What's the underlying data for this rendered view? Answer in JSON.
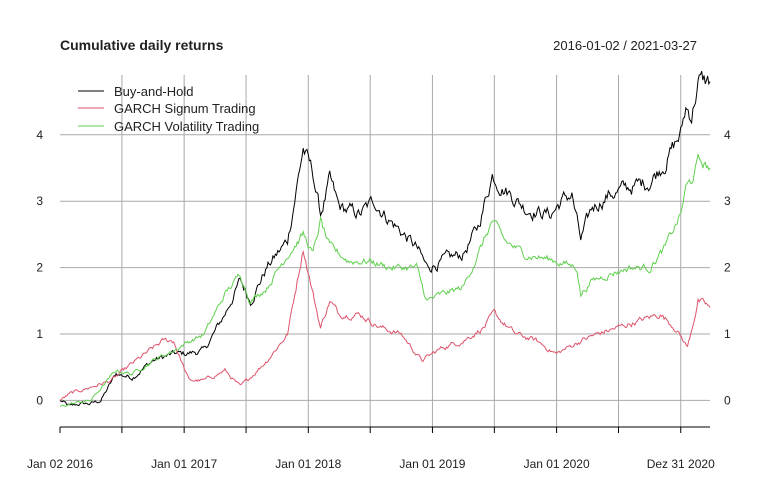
{
  "chart_data": {
    "type": "line",
    "title": "Cumulative daily returns",
    "date_range": "2016-01-02 / 2021-03-27",
    "xlabel": "",
    "ylabel": "",
    "ylim": [
      -0.4,
      4.9
    ],
    "grid": true,
    "legend_position": "top-left",
    "y_ticks_left": [
      "0",
      "1",
      "2",
      "3",
      "4"
    ],
    "y_ticks_right": [
      "0",
      "1",
      "2",
      "3",
      "4"
    ],
    "y_tick_values": [
      0,
      1,
      2,
      3,
      4
    ],
    "x_ticks": [
      {
        "label": "Jan 02 2016",
        "date": "2016-01-02"
      },
      {
        "label": "Jan 01 2017",
        "date": "2017-01-01"
      },
      {
        "label": "Jan 01 2018",
        "date": "2018-01-01"
      },
      {
        "label": "Jan 01 2019",
        "date": "2019-01-01"
      },
      {
        "label": "Jan 01 2020",
        "date": "2020-01-01"
      },
      {
        "label": "Dez 31 2020",
        "date": "2020-12-31"
      }
    ],
    "minor_ticks": [
      "2016-07-02",
      "2017-07-02",
      "2018-07-02",
      "2019-07-02",
      "2020-07-01"
    ],
    "series": [
      {
        "name": "Buy-and-Hold",
        "color": "#000000",
        "points": [
          [
            "2016-01-02",
            0.0
          ],
          [
            "2016-02-01",
            -0.1
          ],
          [
            "2016-03-01",
            -0.05
          ],
          [
            "2016-04-01",
            -0.05
          ],
          [
            "2016-05-01",
            0.0
          ],
          [
            "2016-06-15",
            0.4
          ],
          [
            "2016-08-01",
            0.35
          ],
          [
            "2016-10-01",
            0.6
          ],
          [
            "2016-12-01",
            0.7
          ],
          [
            "2017-01-01",
            0.7
          ],
          [
            "2017-03-01",
            0.75
          ],
          [
            "2017-05-01",
            1.3
          ],
          [
            "2017-06-15",
            1.8
          ],
          [
            "2017-07-15",
            1.5
          ],
          [
            "2017-09-01",
            2.0
          ],
          [
            "2017-11-01",
            2.4
          ],
          [
            "2017-12-17",
            3.8
          ],
          [
            "2018-01-15",
            3.4
          ],
          [
            "2018-02-06",
            2.8
          ],
          [
            "2018-03-05",
            3.3
          ],
          [
            "2018-04-01",
            2.9
          ],
          [
            "2018-06-01",
            2.8
          ],
          [
            "2018-07-15",
            3.0
          ],
          [
            "2018-09-01",
            2.7
          ],
          [
            "2018-11-15",
            2.3
          ],
          [
            "2018-12-15",
            2.0
          ],
          [
            "2019-02-01",
            2.1
          ],
          [
            "2019-04-01",
            2.2
          ],
          [
            "2019-05-15",
            2.6
          ],
          [
            "2019-06-26",
            3.4
          ],
          [
            "2019-08-01",
            3.2
          ],
          [
            "2019-10-01",
            2.9
          ],
          [
            "2019-12-15",
            2.8
          ],
          [
            "2020-01-15",
            3.0
          ],
          [
            "2020-02-15",
            3.1
          ],
          [
            "2020-03-12",
            2.4
          ],
          [
            "2020-04-15",
            2.9
          ],
          [
            "2020-06-01",
            3.1
          ],
          [
            "2020-08-01",
            3.2
          ],
          [
            "2020-10-01",
            3.3
          ],
          [
            "2020-11-15",
            3.6
          ],
          [
            "2020-12-31",
            4.0
          ],
          [
            "2021-01-15",
            4.4
          ],
          [
            "2021-02-01",
            4.3
          ],
          [
            "2021-02-20",
            4.8
          ],
          [
            "2021-03-27",
            4.8
          ]
        ]
      },
      {
        "name": "GARCH Signum Trading",
        "color": "#DF536B",
        "points": [
          [
            "2016-01-02",
            0.0
          ],
          [
            "2016-02-01",
            0.1
          ],
          [
            "2016-04-01",
            0.2
          ],
          [
            "2016-06-01",
            0.3
          ],
          [
            "2016-08-01",
            0.55
          ],
          [
            "2016-11-01",
            0.9
          ],
          [
            "2016-12-01",
            0.9
          ],
          [
            "2017-01-15",
            0.3
          ],
          [
            "2017-03-01",
            0.3
          ],
          [
            "2017-05-01",
            0.45
          ],
          [
            "2017-06-15",
            0.2
          ],
          [
            "2017-07-15",
            0.35
          ],
          [
            "2017-09-01",
            0.6
          ],
          [
            "2017-11-01",
            1.0
          ],
          [
            "2017-12-17",
            2.3
          ],
          [
            "2018-01-15",
            1.6
          ],
          [
            "2018-02-06",
            1.1
          ],
          [
            "2018-03-05",
            1.5
          ],
          [
            "2018-04-01",
            1.3
          ],
          [
            "2018-06-01",
            1.3
          ],
          [
            "2018-08-01",
            1.1
          ],
          [
            "2018-10-01",
            1.0
          ],
          [
            "2018-12-01",
            0.6
          ],
          [
            "2019-02-01",
            0.8
          ],
          [
            "2019-04-01",
            0.9
          ],
          [
            "2019-06-01",
            1.1
          ],
          [
            "2019-07-01",
            1.3
          ],
          [
            "2019-09-01",
            1.0
          ],
          [
            "2019-11-01",
            0.9
          ],
          [
            "2020-01-01",
            0.7
          ],
          [
            "2020-03-12",
            0.9
          ],
          [
            "2020-05-01",
            1.0
          ],
          [
            "2020-07-01",
            1.1
          ],
          [
            "2020-09-01",
            1.2
          ],
          [
            "2020-11-01",
            1.3
          ],
          [
            "2020-12-15",
            1.1
          ],
          [
            "2021-01-20",
            0.8
          ],
          [
            "2021-02-20",
            1.5
          ],
          [
            "2021-03-27",
            1.4
          ]
        ]
      },
      {
        "name": "GARCH Volatility Trading",
        "color": "#61D04F",
        "points": [
          [
            "2016-01-02",
            -0.1
          ],
          [
            "2016-02-01",
            -0.05
          ],
          [
            "2016-04-01",
            0.0
          ],
          [
            "2016-06-15",
            0.45
          ],
          [
            "2016-08-01",
            0.4
          ],
          [
            "2016-10-01",
            0.6
          ],
          [
            "2016-12-01",
            0.75
          ],
          [
            "2017-01-01",
            0.85
          ],
          [
            "2017-03-01",
            1.0
          ],
          [
            "2017-05-01",
            1.6
          ],
          [
            "2017-06-15",
            1.9
          ],
          [
            "2017-07-15",
            1.5
          ],
          [
            "2017-09-01",
            1.7
          ],
          [
            "2017-11-01",
            2.2
          ],
          [
            "2017-12-17",
            2.5
          ],
          [
            "2018-01-15",
            2.2
          ],
          [
            "2018-02-06",
            2.7
          ],
          [
            "2018-03-05",
            2.3
          ],
          [
            "2018-05-01",
            2.1
          ],
          [
            "2018-07-01",
            2.1
          ],
          [
            "2018-09-01",
            2.0
          ],
          [
            "2018-11-15",
            2.0
          ],
          [
            "2018-12-15",
            1.5
          ],
          [
            "2019-02-01",
            1.6
          ],
          [
            "2019-04-01",
            1.7
          ],
          [
            "2019-05-15",
            2.2
          ],
          [
            "2019-06-26",
            2.7
          ],
          [
            "2019-08-01",
            2.4
          ],
          [
            "2019-10-01",
            2.2
          ],
          [
            "2020-01-01",
            2.1
          ],
          [
            "2020-03-01",
            2.0
          ],
          [
            "2020-03-12",
            1.6
          ],
          [
            "2020-04-15",
            1.8
          ],
          [
            "2020-06-01",
            1.9
          ],
          [
            "2020-08-01",
            2.0
          ],
          [
            "2020-10-01",
            2.0
          ],
          [
            "2020-11-15",
            2.3
          ],
          [
            "2020-12-31",
            2.8
          ],
          [
            "2021-01-15",
            3.2
          ],
          [
            "2021-02-01",
            3.3
          ],
          [
            "2021-02-20",
            3.6
          ],
          [
            "2021-03-27",
            3.5
          ]
        ]
      }
    ]
  }
}
